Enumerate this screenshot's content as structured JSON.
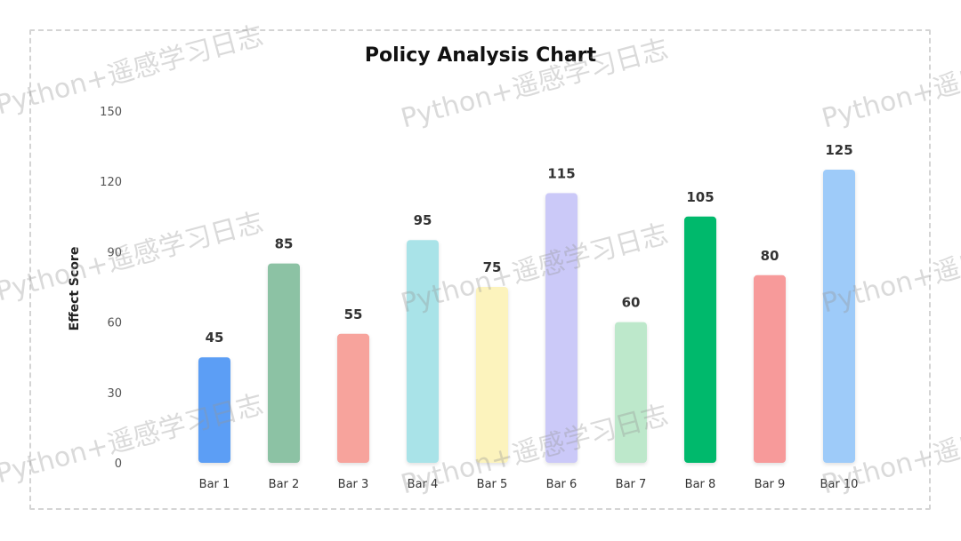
{
  "chart_data": {
    "type": "bar",
    "title": "Policy Analysis Chart",
    "ylabel": "Effect Score",
    "xlabel": "",
    "categories": [
      "Bar 1",
      "Bar 2",
      "Bar 3",
      "Bar 4",
      "Bar 5",
      "Bar 6",
      "Bar 7",
      "Bar 8",
      "Bar 9",
      "Bar 10"
    ],
    "values": [
      45,
      85,
      55,
      95,
      75,
      115,
      60,
      105,
      80,
      125
    ],
    "colors": [
      "#5b9ef5",
      "#8cc2a4",
      "#f7a39c",
      "#a9e3e8",
      "#fcf3bd",
      "#cbc9f8",
      "#bde8cb",
      "#05b96c",
      "#f79a9a",
      "#9ecbf9"
    ],
    "yticks": [
      0,
      30,
      60,
      90,
      120,
      150
    ],
    "ylim": [
      0,
      150
    ],
    "grid": false
  },
  "watermark": "Python+遥感学习日志"
}
